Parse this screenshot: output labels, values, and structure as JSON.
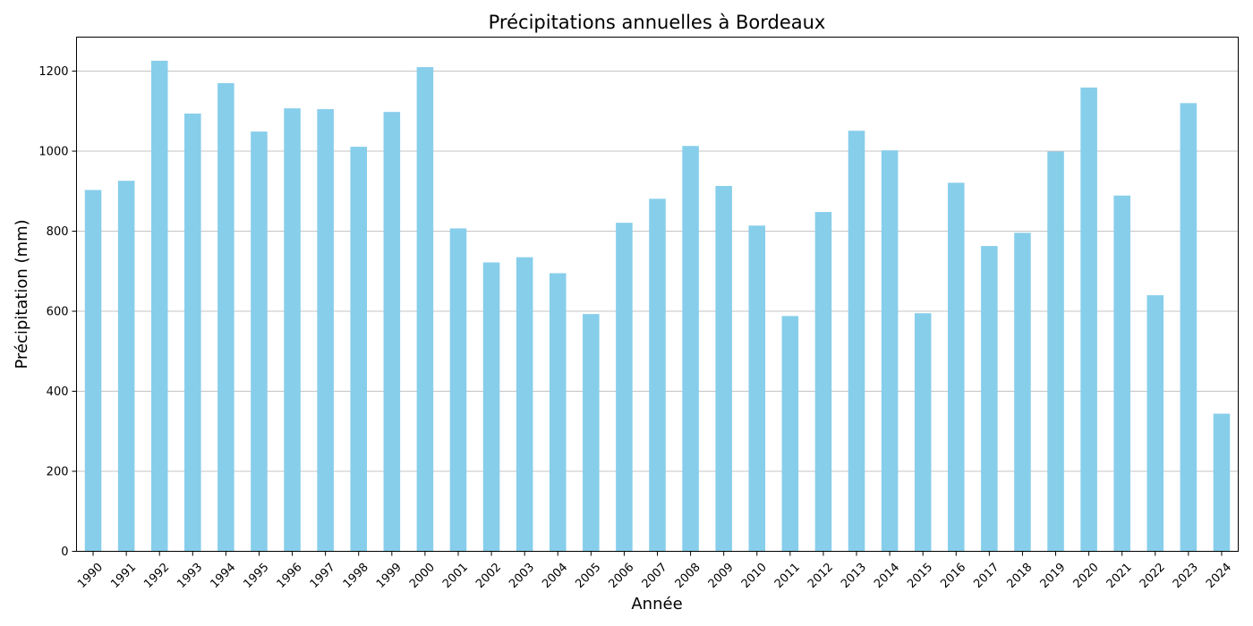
{
  "chart_data": {
    "type": "bar",
    "title": "Précipitations annuelles à Bordeaux",
    "xlabel": "Année",
    "ylabel": "Précipitation (mm)",
    "ylim": [
      0,
      1285
    ],
    "yticks": [
      0,
      200,
      400,
      600,
      800,
      1000,
      1200
    ],
    "grid": "horizontal",
    "bar_color": "#87ceeb",
    "categories": [
      "1990",
      "1991",
      "1992",
      "1993",
      "1994",
      "1995",
      "1996",
      "1997",
      "1998",
      "1999",
      "2000",
      "2001",
      "2002",
      "2003",
      "2004",
      "2005",
      "2006",
      "2007",
      "2008",
      "2009",
      "2010",
      "2011",
      "2012",
      "2013",
      "2014",
      "2015",
      "2016",
      "2017",
      "2018",
      "2019",
      "2020",
      "2021",
      "2022",
      "2023",
      "2024"
    ],
    "values": [
      903,
      926,
      1226,
      1094,
      1170,
      1049,
      1107,
      1105,
      1011,
      1098,
      1210,
      807,
      722,
      735,
      695,
      593,
      821,
      881,
      1013,
      913,
      814,
      588,
      848,
      1051,
      1002,
      595,
      921,
      763,
      796,
      999,
      1159,
      889,
      640,
      1120,
      344
    ]
  }
}
